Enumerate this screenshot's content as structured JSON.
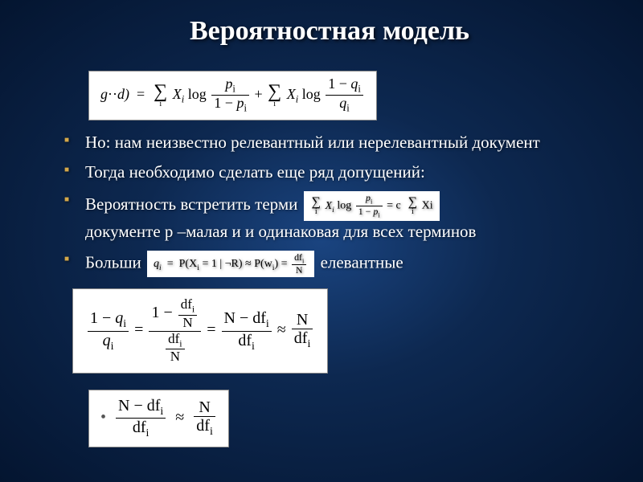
{
  "slide": {
    "title": "Вероятностная модель",
    "title_fontsize": 34,
    "title_color": "#ffffff",
    "bullet_color": "#d4a84a",
    "body_fontsize": 21,
    "body_color": "#ffffff",
    "background_gradient": {
      "type": "radial",
      "stops": [
        {
          "color": "#1a4480",
          "at": 0
        },
        {
          "color": "#0d2850",
          "at": 40
        },
        {
          "color": "#041530",
          "at": 100
        }
      ]
    },
    "formulas": {
      "main_equation": {
        "lhs_prefix": "g",
        "lhs_dots": "··",
        "lhs_arg": "d)",
        "eq": "=",
        "sum_sym": "∑",
        "sum1_index": "i",
        "term1_var": "X",
        "term1_sub": "i",
        "term1_log": "log",
        "frac1_num_var": "p",
        "frac1_num_sub": "i",
        "frac1_den_one": "1 − ",
        "frac1_den_var": "p",
        "frac1_den_sub": "i",
        "plus": "+",
        "sum2_index": "i",
        "term2_var": "X",
        "term2_sub": "i",
        "term2_log": "log",
        "frac2_num_one": "1 − ",
        "frac2_num_var": "q",
        "frac2_num_sub": "i",
        "frac2_den_var": "q",
        "frac2_den_sub": "i"
      },
      "inline_sum_c": {
        "sum_sym": "∑",
        "sub": "i",
        "X": "X",
        "Xi_sub": "i",
        "log": "log",
        "num_var": "p",
        "num_sub": "i",
        "den_one": "1 − ",
        "den_var": "p",
        "den_sub": "i",
        "eq": "= c",
        "sum2_sym": "∑",
        "sub2": "i",
        "Xi2": "Xi"
      },
      "inline_q_approx": {
        "lhs_var": "q",
        "lhs_sub": "i",
        "eq": "=",
        "mid": "P(X",
        "mid_sub": "i",
        "mid2": " = 1 | ¬R) ≈ P(w",
        "mid2_sub": "i",
        "mid3": ") = ",
        "num": "df",
        "num_sub": "i",
        "den": "N"
      },
      "q_fraction_chain": {
        "f1_num_one": "1 − ",
        "f1_num_var": "q",
        "f1_num_sub": "i",
        "f1_den_var": "q",
        "f1_den_sub": "i",
        "eq1": "=",
        "f2_num_outer_one": "1 − ",
        "f2_num_inner_num": "df",
        "f2_num_inner_num_sub": "i",
        "f2_num_inner_den": "N",
        "f2_den_inner_num": "df",
        "f2_den_inner_num_sub": "i",
        "f2_den_inner_den": "N",
        "eq2": "=",
        "f3_num_a": "N − df",
        "f3_num_sub": "i",
        "f3_den": "df",
        "f3_den_sub": "i",
        "approx": "≈",
        "f4_num": "N",
        "f4_den": "df",
        "f4_den_sub": "i"
      },
      "final_approx": {
        "bullet": "•",
        "f1_num": "N − df",
        "f1_num_sub": "i",
        "f1_den": "df",
        "f1_den_sub": "i",
        "approx": "≈",
        "f2_num": "N",
        "f2_den": "df",
        "f2_den_sub": "i"
      },
      "box_background": "#ffffff",
      "box_text_color": "#000000"
    },
    "bullets": [
      {
        "text": "Но: нам неизвестно релевантный или нерелевантный документ"
      },
      {
        "text": "Тогда необходимо сделать еще ряд допущений:"
      },
      {
        "text_before": "Вероятность встретить терми",
        "text_after": "документе p –малая и и одинаковая для всех терминов",
        "has_inline_formula": "inline_sum_c"
      },
      {
        "text_before": "Больши",
        "text_after": "елевантные",
        "has_inline_formula": "inline_q_approx"
      }
    ]
  }
}
